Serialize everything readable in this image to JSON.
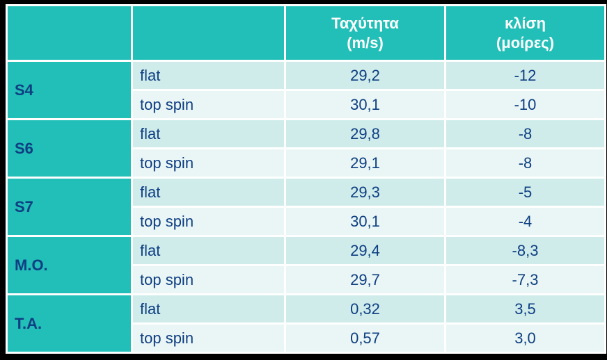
{
  "headers": {
    "speed": "Ταχύτητα\n(m/s)",
    "tilt": "κλίση\n(μοίρες)"
  },
  "groups": [
    {
      "label": "S4",
      "rows": [
        {
          "kind": "flat",
          "speed": "29,2",
          "tilt": "-12"
        },
        {
          "kind": "top spin",
          "speed": "30,1",
          "tilt": "-10"
        }
      ]
    },
    {
      "label": "S6",
      "rows": [
        {
          "kind": "flat",
          "speed": "29,8",
          "tilt": "-8"
        },
        {
          "kind": "top spin",
          "speed": "29,1",
          "tilt": "-8"
        }
      ]
    },
    {
      "label": "S7",
      "rows": [
        {
          "kind": "flat",
          "speed": "29,3",
          "tilt": "-5"
        },
        {
          "kind": "top spin",
          "speed": "30,1",
          "tilt": "-4"
        }
      ]
    },
    {
      "label": "M.O.",
      "rows": [
        {
          "kind": "flat",
          "speed": "29,4",
          "tilt": "-8,3"
        },
        {
          "kind": "top spin",
          "speed": "29,7",
          "tilt": "-7,3"
        }
      ]
    },
    {
      "label": "T.A.",
      "rows": [
        {
          "kind": "flat",
          "speed": "0,32",
          "tilt": "3,5"
        },
        {
          "kind": "top spin",
          "speed": "0,57",
          "tilt": "3,0"
        }
      ]
    }
  ],
  "colors": {
    "page_bg": "#000000",
    "header_bg": "#22bfb8",
    "header_text": "#ffffff",
    "cell_text": "#0e3e82",
    "row_light": "#cfeceb",
    "row_pale": "#e9f6f5",
    "border": "#ffffff"
  }
}
